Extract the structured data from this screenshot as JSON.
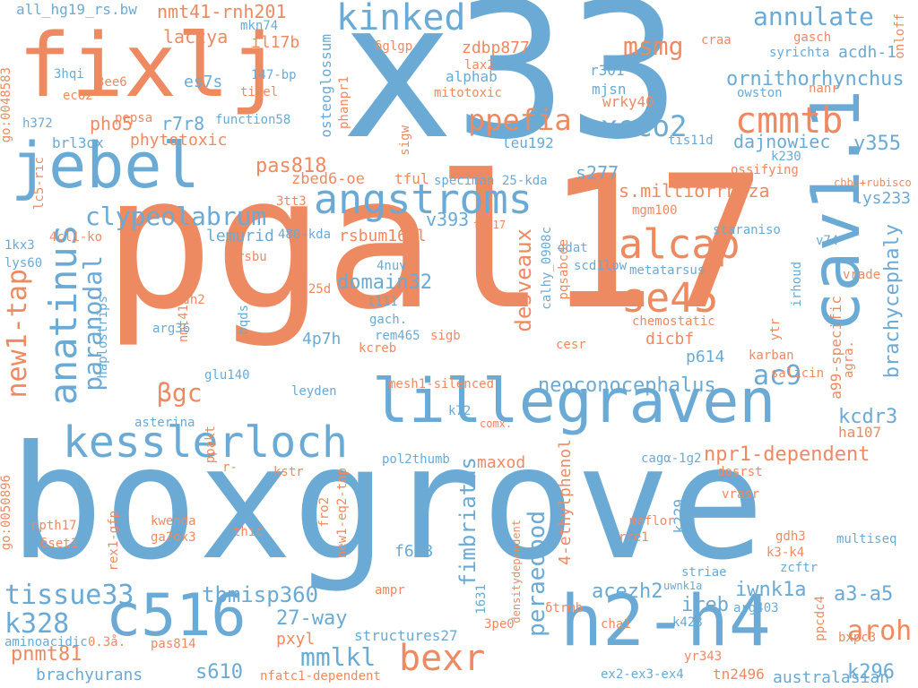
{
  "colors": {
    "blue": "#6aaad4",
    "orange": "#ee8a62",
    "background": "#ffffff"
  },
  "words": [
    "x33",
    "pgal17",
    "boxgrove",
    "fixlj",
    "jebel",
    "lillegraven",
    "kesslerloch",
    "h2-h4",
    "cav1.1",
    "c516",
    "angstroms",
    "alcap",
    "kinked",
    "anatinus",
    "clypeolabrum",
    "cmmtb",
    "se45",
    "ppefia",
    "xeco2",
    "bexr",
    "msmg",
    "annulate",
    "new1-tap",
    "paranodal",
    "desveaux",
    "neoconocephalus",
    "fimbriatus",
    "peraeopod",
    "tissue33",
    "tbmisp360",
    "k328",
    "mmlkl",
    "aroh",
    "ac9",
    "kcdr3",
    "npr1-dependent",
    "ornithorhynchus",
    "dajnowiec",
    "brachycephaly",
    "s.miltiorrhiza",
    "domain32",
    "βgc",
    "nmt41-rnh201",
    "laczya",
    "zdbp877",
    "pas818",
    "v393",
    "s277",
    "27-way",
    "a3-a5",
    "iwnk1a",
    "acezh2",
    "ireb",
    "k296",
    "pnmt81",
    "s610",
    "y355",
    "r7r8",
    "pho5",
    "es7s",
    "phytotoxic",
    "il17b",
    "osteoglossum",
    "zbed6-oe",
    "maxod",
    "pxyl",
    "4p7h",
    "lemurid",
    "rsbum166l",
    "acdh-1",
    "mjsn",
    "r301",
    "leu192",
    "p614",
    "dicbf",
    "lys233",
    "staraniso",
    "irhoud",
    "a99-specific",
    "ha107",
    "k229",
    "4-ethylphenol",
    "brachyurans",
    "australasian",
    "tn2496",
    "ex2-ex3-ex4",
    "structures27",
    "nfatc1-dependent",
    "all_hg19_rs.bw",
    "go:0048583",
    "mkn74",
    "δglgp",
    "alphab",
    "lax2",
    "wrky40",
    "mitotoxic",
    "147-bp",
    "titel",
    "function58",
    "eco2",
    "3hqi",
    "3ee6",
    "h372",
    "pepsa",
    "brl3ox",
    "lc5-ric",
    "phanpr1",
    "sigw",
    "tful",
    "speciman",
    "25-kda",
    "3tt3",
    "th-17",
    "480-kda",
    "4cl1-ko",
    "1kx3",
    "lys60",
    "rsbu",
    "calhy_0908c",
    "ddat",
    "4nuv",
    "scd1low",
    "pqsabcde",
    "metatarsus",
    "chemostatic",
    "cesr",
    "mgm100",
    "v74",
    "vrade",
    "1,25d",
    "nmt41",
    "adh2",
    "bqds",
    "arg36",
    "haplostrips",
    "gach.",
    "rem465",
    "t111",
    "sigb",
    "kcreb",
    "ytr",
    "karban",
    "agra.",
    "salicin",
    "glu140",
    "leyden",
    "mesh1-silenced",
    "k72",
    "comx.",
    "asterina",
    "ppakt",
    "r-",
    "kstr",
    "new1-eq2-tap",
    "pol2thumb",
    "cagα-1g2",
    "dosrst",
    "vrasr",
    "go:0050896",
    "npth17",
    "δset1",
    "kwenda",
    "ga2ox3",
    "rex1-gfp",
    "thic",
    "fro2",
    "f683",
    "meflor",
    "rre1",
    "gdh3",
    "k3-k4",
    "multiseq",
    "zcftr",
    "striae",
    "uwnk1a",
    "ampr",
    "1631",
    "densitydependent",
    "δtrmb",
    "3pe0",
    "cha1",
    "k428",
    "arg403",
    "ppcdc4",
    "yr343",
    "bxpc3",
    "pas814",
    "0.3å.",
    "aminoacidic",
    "craa",
    "gasch",
    "syrichta",
    "onloff",
    "owston",
    "nanr",
    "tis11d",
    "k230",
    "ossifying",
    "cbbp+rubisco"
  ]
}
